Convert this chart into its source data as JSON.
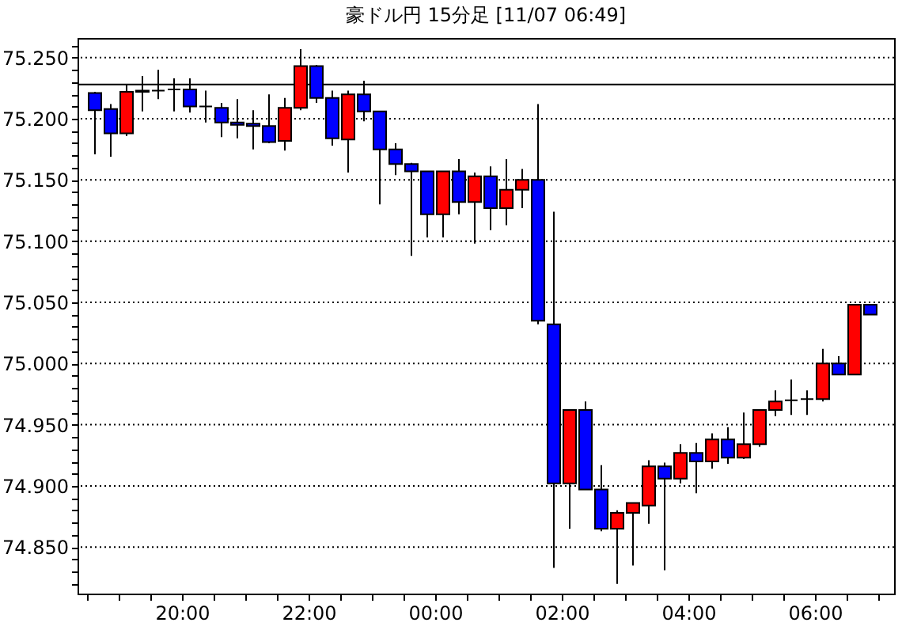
{
  "chart_data": {
    "type": "candlestick",
    "title": "豪ドル円 15分足 [11/07 06:49]",
    "x": [
      "--11-06T18:37:30",
      "--11-06T18:52:30",
      "--11-06T19:07:30",
      "--11-06T19:22:30",
      "--11-06T19:37:30",
      "--11-06T19:52:30",
      "--11-06T20:07:30",
      "--11-06T20:22:30",
      "--11-06T20:37:30",
      "--11-06T20:52:30",
      "--11-06T21:07:30",
      "--11-06T21:22:30",
      "--11-06T21:37:30",
      "--11-06T21:52:30",
      "--11-06T22:07:30",
      "--11-06T22:22:30",
      "--11-06T22:37:30",
      "--11-06T22:52:30",
      "--11-06T23:07:30",
      "--11-06T23:22:30",
      "--11-06T23:37:30",
      "--11-06T23:52:30",
      "--11-07T00:07:30",
      "--11-07T00:22:30",
      "--11-07T00:37:30",
      "--11-07T00:52:30",
      "--11-07T01:07:30",
      "--11-07T01:22:30",
      "--11-07T01:37:30",
      "--11-07T01:52:30",
      "--11-07T02:07:30",
      "--11-07T02:22:30",
      "--11-07T02:37:30",
      "--11-07T02:52:30",
      "--11-07T03:07:30",
      "--11-07T03:22:30",
      "--11-07T03:37:30",
      "--11-07T03:52:30",
      "--11-07T04:07:30",
      "--11-07T04:22:30",
      "--11-07T04:37:30",
      "--11-07T04:52:30",
      "--11-07T05:07:30",
      "--11-07T05:22:30",
      "--11-07T05:37:30",
      "--11-07T05:52:30",
      "--11-07T06:07:30",
      "--11-07T06:22:30",
      "--11-07T06:37:30",
      "--11-07T06:52:30"
    ],
    "ohlc": [
      [
        75.221,
        75.222,
        75.171,
        75.207
      ],
      [
        75.208,
        75.212,
        75.169,
        75.188
      ],
      [
        75.188,
        75.228,
        75.186,
        75.222
      ],
      [
        75.222,
        75.235,
        75.206,
        75.223
      ],
      [
        75.223,
        75.24,
        75.216,
        75.223
      ],
      [
        75.224,
        75.233,
        75.206,
        75.224
      ],
      [
        75.224,
        75.233,
        75.205,
        75.21
      ],
      [
        75.21,
        75.223,
        75.197,
        75.21
      ],
      [
        75.209,
        75.213,
        75.185,
        75.197
      ],
      [
        75.197,
        75.216,
        75.184,
        75.195
      ],
      [
        75.196,
        75.207,
        75.175,
        75.194
      ],
      [
        75.194,
        75.22,
        75.18,
        75.181
      ],
      [
        75.182,
        75.217,
        75.174,
        75.209
      ],
      [
        75.209,
        75.257,
        75.207,
        75.243
      ],
      [
        75.243,
        75.244,
        75.213,
        75.217
      ],
      [
        75.217,
        75.223,
        75.178,
        75.184
      ],
      [
        75.183,
        75.223,
        75.156,
        75.22
      ],
      [
        75.22,
        75.231,
        75.198,
        75.206
      ],
      [
        75.206,
        75.206,
        75.13,
        75.175
      ],
      [
        75.175,
        75.18,
        75.154,
        75.163
      ],
      [
        75.163,
        75.164,
        75.088,
        75.157
      ],
      [
        75.157,
        75.157,
        75.103,
        75.122
      ],
      [
        75.122,
        75.157,
        75.103,
        75.157
      ],
      [
        75.157,
        75.167,
        75.122,
        75.132
      ],
      [
        75.132,
        75.156,
        75.098,
        75.153
      ],
      [
        75.153,
        75.161,
        75.109,
        75.127
      ],
      [
        75.127,
        75.167,
        75.113,
        75.142
      ],
      [
        75.142,
        75.159,
        75.127,
        75.15
      ],
      [
        75.15,
        75.212,
        75.032,
        75.035
      ],
      [
        75.032,
        75.124,
        74.833,
        74.902
      ],
      [
        74.902,
        74.962,
        74.865,
        74.962
      ],
      [
        74.962,
        74.969,
        74.897,
        74.897
      ],
      [
        74.897,
        74.917,
        74.863,
        74.865
      ],
      [
        74.865,
        74.88,
        74.82,
        74.878
      ],
      [
        74.878,
        74.886,
        74.835,
        74.886
      ],
      [
        74.884,
        74.921,
        74.869,
        74.916
      ],
      [
        74.916,
        74.919,
        74.831,
        74.906
      ],
      [
        74.906,
        74.934,
        74.902,
        74.927
      ],
      [
        74.927,
        74.935,
        74.894,
        74.92
      ],
      [
        74.92,
        74.943,
        74.914,
        74.938
      ],
      [
        74.938,
        74.948,
        74.918,
        74.923
      ],
      [
        74.923,
        74.96,
        74.922,
        74.934
      ],
      [
        74.934,
        74.962,
        74.932,
        74.962
      ],
      [
        74.962,
        74.978,
        74.957,
        74.969
      ],
      [
        74.97,
        74.987,
        74.958,
        74.97
      ],
      [
        74.971,
        74.978,
        74.958,
        74.971
      ],
      [
        74.971,
        75.012,
        74.969,
        75.0
      ],
      [
        75.0,
        75.006,
        74.991,
        74.991
      ],
      [
        74.991,
        75.048,
        74.991,
        75.048
      ],
      [
        75.048,
        75.048,
        75.04,
        75.04
      ]
    ],
    "colors": [
      "#0000ff",
      "#0000ff",
      "#ff0000",
      "#ff0000",
      "#000000",
      "#000000",
      "#0000ff",
      "#000000",
      "#0000ff",
      "#0000ff",
      "#0000ff",
      "#0000ff",
      "#ff0000",
      "#ff0000",
      "#0000ff",
      "#0000ff",
      "#ff0000",
      "#0000ff",
      "#0000ff",
      "#0000ff",
      "#0000ff",
      "#0000ff",
      "#ff0000",
      "#0000ff",
      "#ff0000",
      "#0000ff",
      "#ff0000",
      "#ff0000",
      "#0000ff",
      "#0000ff",
      "#ff0000",
      "#0000ff",
      "#0000ff",
      "#ff0000",
      "#ff0000",
      "#ff0000",
      "#0000ff",
      "#ff0000",
      "#0000ff",
      "#ff0000",
      "#0000ff",
      "#ff0000",
      "#ff0000",
      "#ff0000",
      "#000000",
      "#000000",
      "#ff0000",
      "#0000ff",
      "#ff0000",
      "#0000ff"
    ],
    "xlim": [
      "--11-06T18:21",
      "--11-07T07:15"
    ],
    "xticks": [
      {
        "value": "--11-06T18:30",
        "label": null
      },
      {
        "value": "--11-06T19:00",
        "label": null
      },
      {
        "value": "--11-06T19:30",
        "label": null
      },
      {
        "value": "--11-06T20:00",
        "label": "20:00"
      },
      {
        "value": "--11-06T20:30",
        "label": null
      },
      {
        "value": "--11-06T21:00",
        "label": null
      },
      {
        "value": "--11-06T21:30",
        "label": null
      },
      {
        "value": "--11-06T22:00",
        "label": "22:00"
      },
      {
        "value": "--11-06T22:30",
        "label": null
      },
      {
        "value": "--11-06T23:00",
        "label": null
      },
      {
        "value": "--11-06T23:30",
        "label": null
      },
      {
        "value": "--11-07T00:00",
        "label": "00:00"
      },
      {
        "value": "--11-07T00:30",
        "label": null
      },
      {
        "value": "--11-07T01:00",
        "label": null
      },
      {
        "value": "--11-07T01:30",
        "label": null
      },
      {
        "value": "--11-07T02:00",
        "label": "02:00"
      },
      {
        "value": "--11-07T02:30",
        "label": null
      },
      {
        "value": "--11-07T03:00",
        "label": null
      },
      {
        "value": "--11-07T03:30",
        "label": null
      },
      {
        "value": "--11-07T04:00",
        "label": "04:00"
      },
      {
        "value": "--11-07T04:30",
        "label": null
      },
      {
        "value": "--11-07T05:00",
        "label": null
      },
      {
        "value": "--11-07T05:30",
        "label": null
      },
      {
        "value": "--11-07T06:00",
        "label": "06:00"
      },
      {
        "value": "--11-07T06:30",
        "label": null
      },
      {
        "value": "--11-07T07:00",
        "label": null
      }
    ],
    "ylim": [
      74.812,
      75.266
    ],
    "yticks": [
      {
        "value": 74.82,
        "label": null
      },
      {
        "value": 74.83,
        "label": null
      },
      {
        "value": 74.84,
        "label": null
      },
      {
        "value": 74.85,
        "label": "74.850"
      },
      {
        "value": 74.86,
        "label": null
      },
      {
        "value": 74.87,
        "label": null
      },
      {
        "value": 74.88,
        "label": null
      },
      {
        "value": 74.89,
        "label": null
      },
      {
        "value": 74.9,
        "label": "74.900"
      },
      {
        "value": 74.91,
        "label": null
      },
      {
        "value": 74.92,
        "label": null
      },
      {
        "value": 74.93,
        "label": null
      },
      {
        "value": 74.94,
        "label": null
      },
      {
        "value": 74.95,
        "label": "74.950"
      },
      {
        "value": 74.96,
        "label": null
      },
      {
        "value": 74.97,
        "label": null
      },
      {
        "value": 74.98,
        "label": null
      },
      {
        "value": 74.99,
        "label": null
      },
      {
        "value": 75,
        "label": "75.000"
      },
      {
        "value": 75.01,
        "label": null
      },
      {
        "value": 75.02,
        "label": null
      },
      {
        "value": 75.03,
        "label": null
      },
      {
        "value": 75.04,
        "label": null
      },
      {
        "value": 75.05,
        "label": "75.050"
      },
      {
        "value": 75.06,
        "label": null
      },
      {
        "value": 75.07,
        "label": null
      },
      {
        "value": 75.08,
        "label": null
      },
      {
        "value": 75.09,
        "label": null
      },
      {
        "value": 75.1,
        "label": "75.100"
      },
      {
        "value": 75.11,
        "label": null
      },
      {
        "value": 75.12,
        "label": null
      },
      {
        "value": 75.13,
        "label": null
      },
      {
        "value": 75.14,
        "label": null
      },
      {
        "value": 75.15,
        "label": "75.150"
      },
      {
        "value": 75.16,
        "label": null
      },
      {
        "value": 75.17,
        "label": null
      },
      {
        "value": 75.18,
        "label": null
      },
      {
        "value": 75.19,
        "label": null
      },
      {
        "value": 75.2,
        "label": "75.200"
      },
      {
        "value": 75.21,
        "label": null
      },
      {
        "value": 75.22,
        "label": null
      },
      {
        "value": 75.23,
        "label": null
      },
      {
        "value": 75.24,
        "label": null
      },
      {
        "value": 75.25,
        "label": "75.250"
      },
      {
        "value": 75.26,
        "label": null
      }
    ],
    "grid": "y",
    "ref_lines": [
      {
        "axis": "y",
        "value": 75.228,
        "color": "#000000"
      }
    ]
  }
}
